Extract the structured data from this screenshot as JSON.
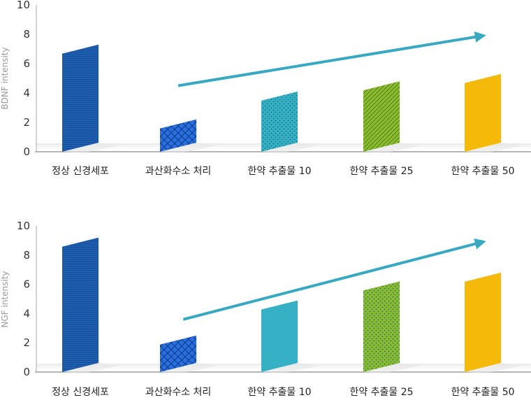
{
  "chart_data": [
    {
      "type": "bar",
      "ylabel": "BDNF intensity",
      "ylim": [
        0,
        10
      ],
      "yticks": [
        0,
        2,
        4,
        6,
        8,
        10
      ],
      "categories": [
        "정상 신경세포",
        "과산화수소 처리",
        "한약 추출물 10",
        "한약 추출물 25",
        "한약 추출물 50"
      ],
      "values": [
        7.3,
        2.2,
        4.1,
        4.8,
        5.3
      ],
      "colors": [
        "#1f5fb0",
        "#2a6fdc",
        "#35b0c4",
        "#8bbb2e",
        "#f5b90a"
      ],
      "patterns": [
        "hlines",
        "scales",
        "dots",
        "diag",
        "solid"
      ],
      "trend_arrow": {
        "from": [
          1,
          4.5
        ],
        "to": [
          4.95,
          7.9
        ],
        "color": "#39a9c3"
      },
      "grid": false
    },
    {
      "type": "bar",
      "ylabel": "NGF intensity",
      "ylim": [
        0,
        10
      ],
      "yticks": [
        0,
        2,
        4,
        6,
        8,
        10
      ],
      "categories": [
        "정상 신경세포",
        "과산화수소 처리",
        "한약 추출물 10",
        "한약 추출물 25",
        "한약 추출물 50"
      ],
      "values": [
        9.2,
        2.5,
        4.9,
        6.2,
        6.8
      ],
      "colors": [
        "#1f5fb0",
        "#2a6fdc",
        "#35b0c4",
        "#8bbb2e",
        "#f5b90a"
      ],
      "patterns": [
        "hlines",
        "scales",
        "solid",
        "dots",
        "solid"
      ],
      "trend_arrow": {
        "from": [
          1.05,
          3.6
        ],
        "to": [
          4.95,
          8.9
        ],
        "color": "#39a9c3"
      },
      "grid": false
    }
  ]
}
